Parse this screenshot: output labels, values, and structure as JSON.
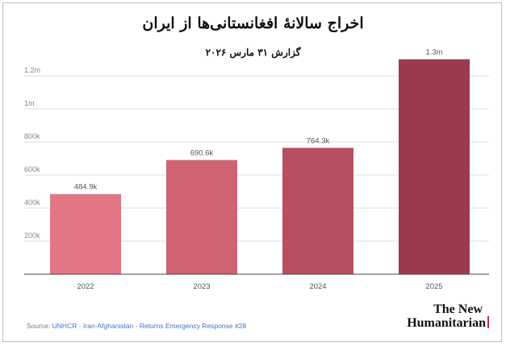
{
  "title": "اخراج سالانهٔ افغانستانی‌ها از ایران",
  "subtitle": "گزارش ۳۱ مارس ۲۰۲۶",
  "source": {
    "prefix": "Source: ",
    "text": "UNHCR - Iran-Afghanistan - Returns Emergency Response #28"
  },
  "logo": {
    "line1": "The New",
    "line2": "Humanitarian"
  },
  "chart_data": {
    "type": "bar",
    "categories": [
      "2022",
      "2023",
      "2024",
      "2025"
    ],
    "values": [
      484900,
      690600,
      764300,
      1300000
    ],
    "data_labels": [
      "484.9k",
      "690.6k",
      "764.3k",
      "1.3m"
    ],
    "y_ticks": [
      {
        "value": 200000,
        "label": "200k"
      },
      {
        "value": 400000,
        "label": "400k"
      },
      {
        "value": 600000,
        "label": "600k"
      },
      {
        "value": 800000,
        "label": "800k"
      },
      {
        "value": 1000000,
        "label": "1m"
      },
      {
        "value": 1200000,
        "label": "1.2m"
      }
    ],
    "ylim": [
      0,
      1300000
    ],
    "grid": true,
    "colors": [
      "#e27686",
      "#cf6373",
      "#b84f60",
      "#9b3a4e"
    ]
  }
}
